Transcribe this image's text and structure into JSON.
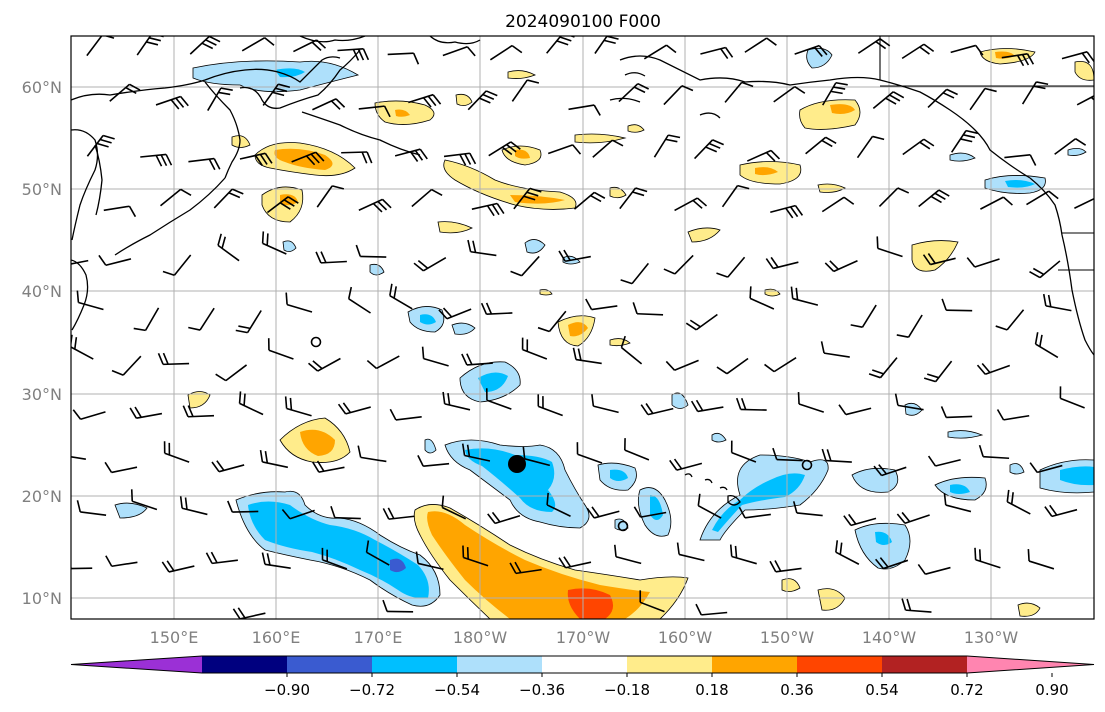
{
  "title": "2024090100 F000",
  "map": {
    "lat_labels": [
      "60°N",
      "50°N",
      "40°N",
      "30°N",
      "20°N",
      "10°N"
    ],
    "lon_labels": [
      "150°E",
      "160°E",
      "170°E",
      "180°W",
      "170°W",
      "160°W",
      "150°W",
      "140°W",
      "130°W"
    ],
    "gridlines": true,
    "land_color": "#ffffff",
    "coastline_color": "#000000"
  },
  "colorbar": {
    "tick_labels": [
      "−0.90",
      "−0.72",
      "−0.54",
      "−0.36",
      "−0.18",
      "0.18",
      "0.36",
      "0.54",
      "0.72",
      "0.90"
    ],
    "colors": [
      "#9b30d6",
      "#00007f",
      "#3a5bd0",
      "#00bfff",
      "#aee0fb",
      "#ffffff",
      "#ffec8b",
      "#ffa500",
      "#ff4500",
      "#b22222",
      "#ff85b0"
    ],
    "extend": "both"
  },
  "markers": [
    {
      "type": "filled-dot",
      "label": "storm center (filled circle)"
    },
    {
      "type": "open-circle"
    },
    {
      "type": "open-circle"
    },
    {
      "type": "open-circle"
    }
  ]
}
